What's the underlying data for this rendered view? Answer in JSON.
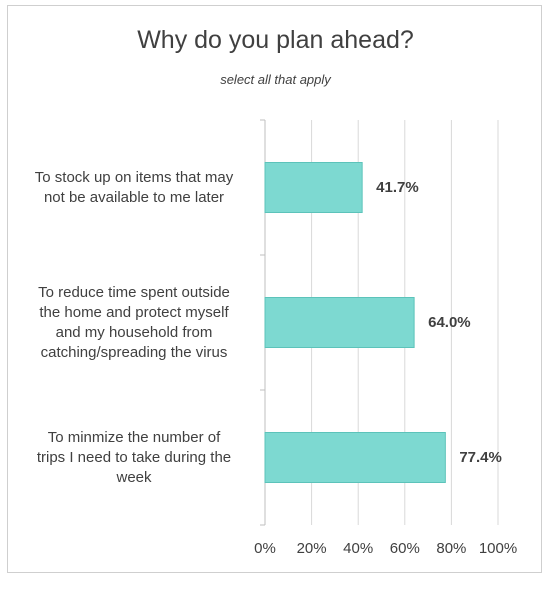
{
  "chart_data": {
    "type": "bar",
    "orientation": "horizontal",
    "title": "Why do you plan ahead?",
    "subtitle": "select all that apply",
    "categories": [
      "To stock up on items that may not be available to me later",
      "To reduce time spent outside the home and protect myself and my household from catching/spreading the virus",
      "To minmize the number of trips I need to take during the week"
    ],
    "category_lines": [
      [
        "To stock up on items that may",
        "not be available to me later"
      ],
      [
        "To reduce time spent outside",
        "the home and protect myself",
        "and my household from",
        "catching/spreading the virus"
      ],
      [
        "To minmize the number of",
        "trips I need to take during the",
        "week"
      ]
    ],
    "values": [
      41.7,
      64.0,
      77.4
    ],
    "value_labels": [
      "41.7%",
      "64.0%",
      "77.4%"
    ],
    "xlim": [
      0,
      100
    ],
    "x_ticks": [
      0,
      20,
      40,
      60,
      80,
      100
    ],
    "x_tick_labels": [
      "0%",
      "20%",
      "40%",
      "60%",
      "80%",
      "100%"
    ],
    "grid": true,
    "legend": "none",
    "bar_color": "#7dd9d1",
    "bar_edge_color": "#5cc3ba"
  }
}
